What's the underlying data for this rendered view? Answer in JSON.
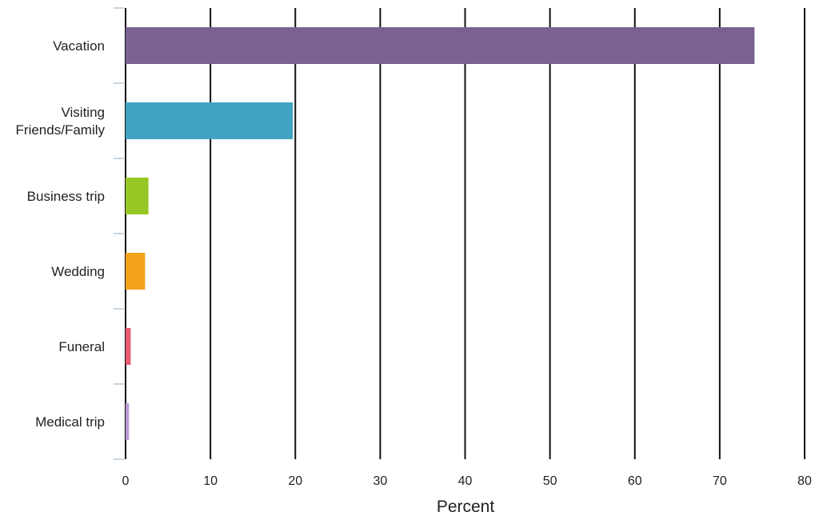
{
  "chart_data": {
    "type": "bar",
    "orientation": "horizontal",
    "categories": [
      "Vacation",
      "Visiting Friends/Family",
      "Business trip",
      "Wedding",
      "Funeral",
      "Medical trip"
    ],
    "category_label_lines": [
      [
        "Vacation"
      ],
      [
        "Visiting",
        "Friends/Family"
      ],
      [
        "Business trip"
      ],
      [
        "Wedding"
      ],
      [
        "Funeral"
      ],
      [
        "Medical trip"
      ]
    ],
    "values": [
      74.1,
      19.7,
      2.7,
      2.3,
      0.6,
      0.4
    ],
    "colors": [
      "#7b6191",
      "#41a3c2",
      "#96c825",
      "#f3a21c",
      "#e85a76",
      "#b99bd6"
    ],
    "xlabel": "Percent",
    "ylabel": "",
    "xlim": [
      0,
      80
    ],
    "xticks": [
      0,
      10,
      20,
      30,
      40,
      50,
      60,
      70,
      80
    ],
    "vertical_grid": true
  }
}
